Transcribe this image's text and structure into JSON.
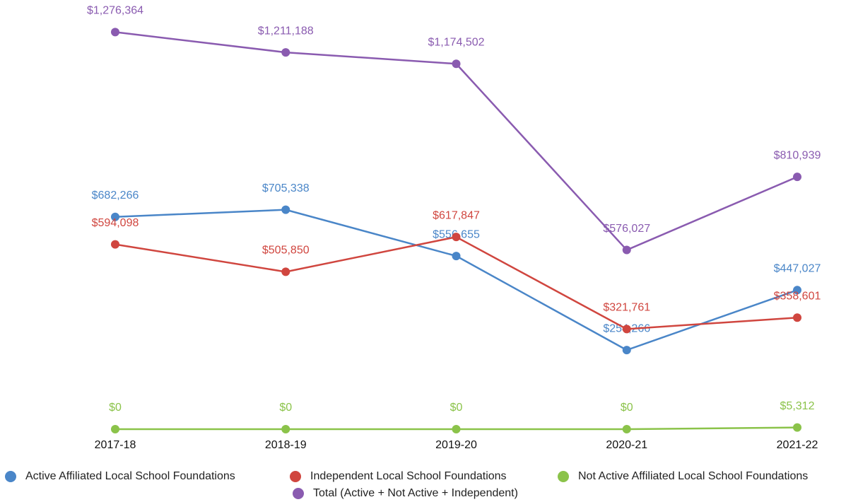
{
  "chart_data": {
    "type": "line",
    "categories": [
      "2017-18",
      "2018-19",
      "2019-20",
      "2020-21",
      "2021-22"
    ],
    "ylim": [
      0,
      1300000
    ],
    "series": [
      {
        "name": "Active Affiliated Local School Foundations",
        "color": "#4a86c8",
        "values": [
          682266,
          705338,
          556655,
          254266,
          447027
        ],
        "value_labels": [
          "$682,266",
          "$705,338",
          "$556,655",
          "$254,266",
          "$447,027"
        ]
      },
      {
        "name": "Independent Local School Foundations",
        "color": "#d0463f",
        "values": [
          594098,
          505850,
          617847,
          321761,
          358601
        ],
        "value_labels": [
          "$594,098",
          "$505,850",
          "$617,847",
          "$321,761",
          "$358,601"
        ]
      },
      {
        "name": "Not Active Affiliated Local School Foundations",
        "color": "#8bc34a",
        "values": [
          0,
          0,
          0,
          0,
          5312
        ],
        "value_labels": [
          "$0",
          "$0",
          "$0",
          "$0",
          "$5,312"
        ]
      },
      {
        "name": "Total (Active + Not Active + Independent)",
        "color": "#8a5bb0",
        "values": [
          1276364,
          1211188,
          1174502,
          576027,
          810939
        ],
        "value_labels": [
          "$1,276,364",
          "$1,211,188",
          "$1,174,502",
          "$576,027",
          "$810,939"
        ]
      }
    ]
  }
}
